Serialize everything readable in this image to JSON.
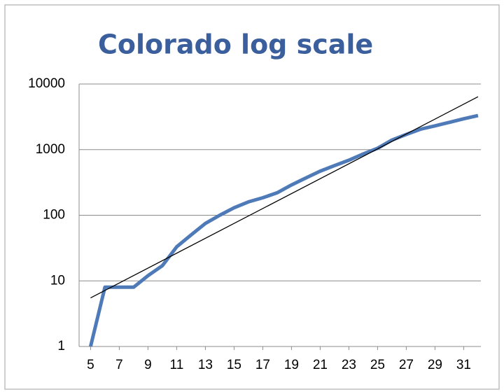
{
  "chart_data": {
    "type": "line",
    "title": "Colorado log scale",
    "x": [
      5,
      6,
      7,
      8,
      9,
      10,
      11,
      12,
      13,
      14,
      15,
      16,
      17,
      18,
      19,
      20,
      21,
      22,
      23,
      24,
      25,
      26,
      27,
      28,
      29,
      30,
      31,
      32
    ],
    "series": [
      {
        "color": "#4f7ab8",
        "values": [
          1,
          8,
          8,
          8,
          12,
          17,
          33,
          50,
          75,
          100,
          130,
          160,
          185,
          220,
          290,
          370,
          470,
          570,
          690,
          860,
          1050,
          1400,
          1700,
          2050,
          2300,
          2600,
          2950,
          3300
        ]
      },
      {
        "color": "#000000",
        "x": [
          5,
          32
        ],
        "values": [
          5.5,
          6400
        ]
      }
    ],
    "xlim": [
      4.2,
      32.2
    ],
    "xticks": [
      5,
      7,
      9,
      11,
      13,
      15,
      17,
      19,
      21,
      23,
      25,
      27,
      29,
      31
    ],
    "ylim": [
      1,
      10000
    ],
    "yticks": [
      1,
      10,
      100,
      1000,
      10000
    ],
    "yscale": "log",
    "grid": true
  }
}
